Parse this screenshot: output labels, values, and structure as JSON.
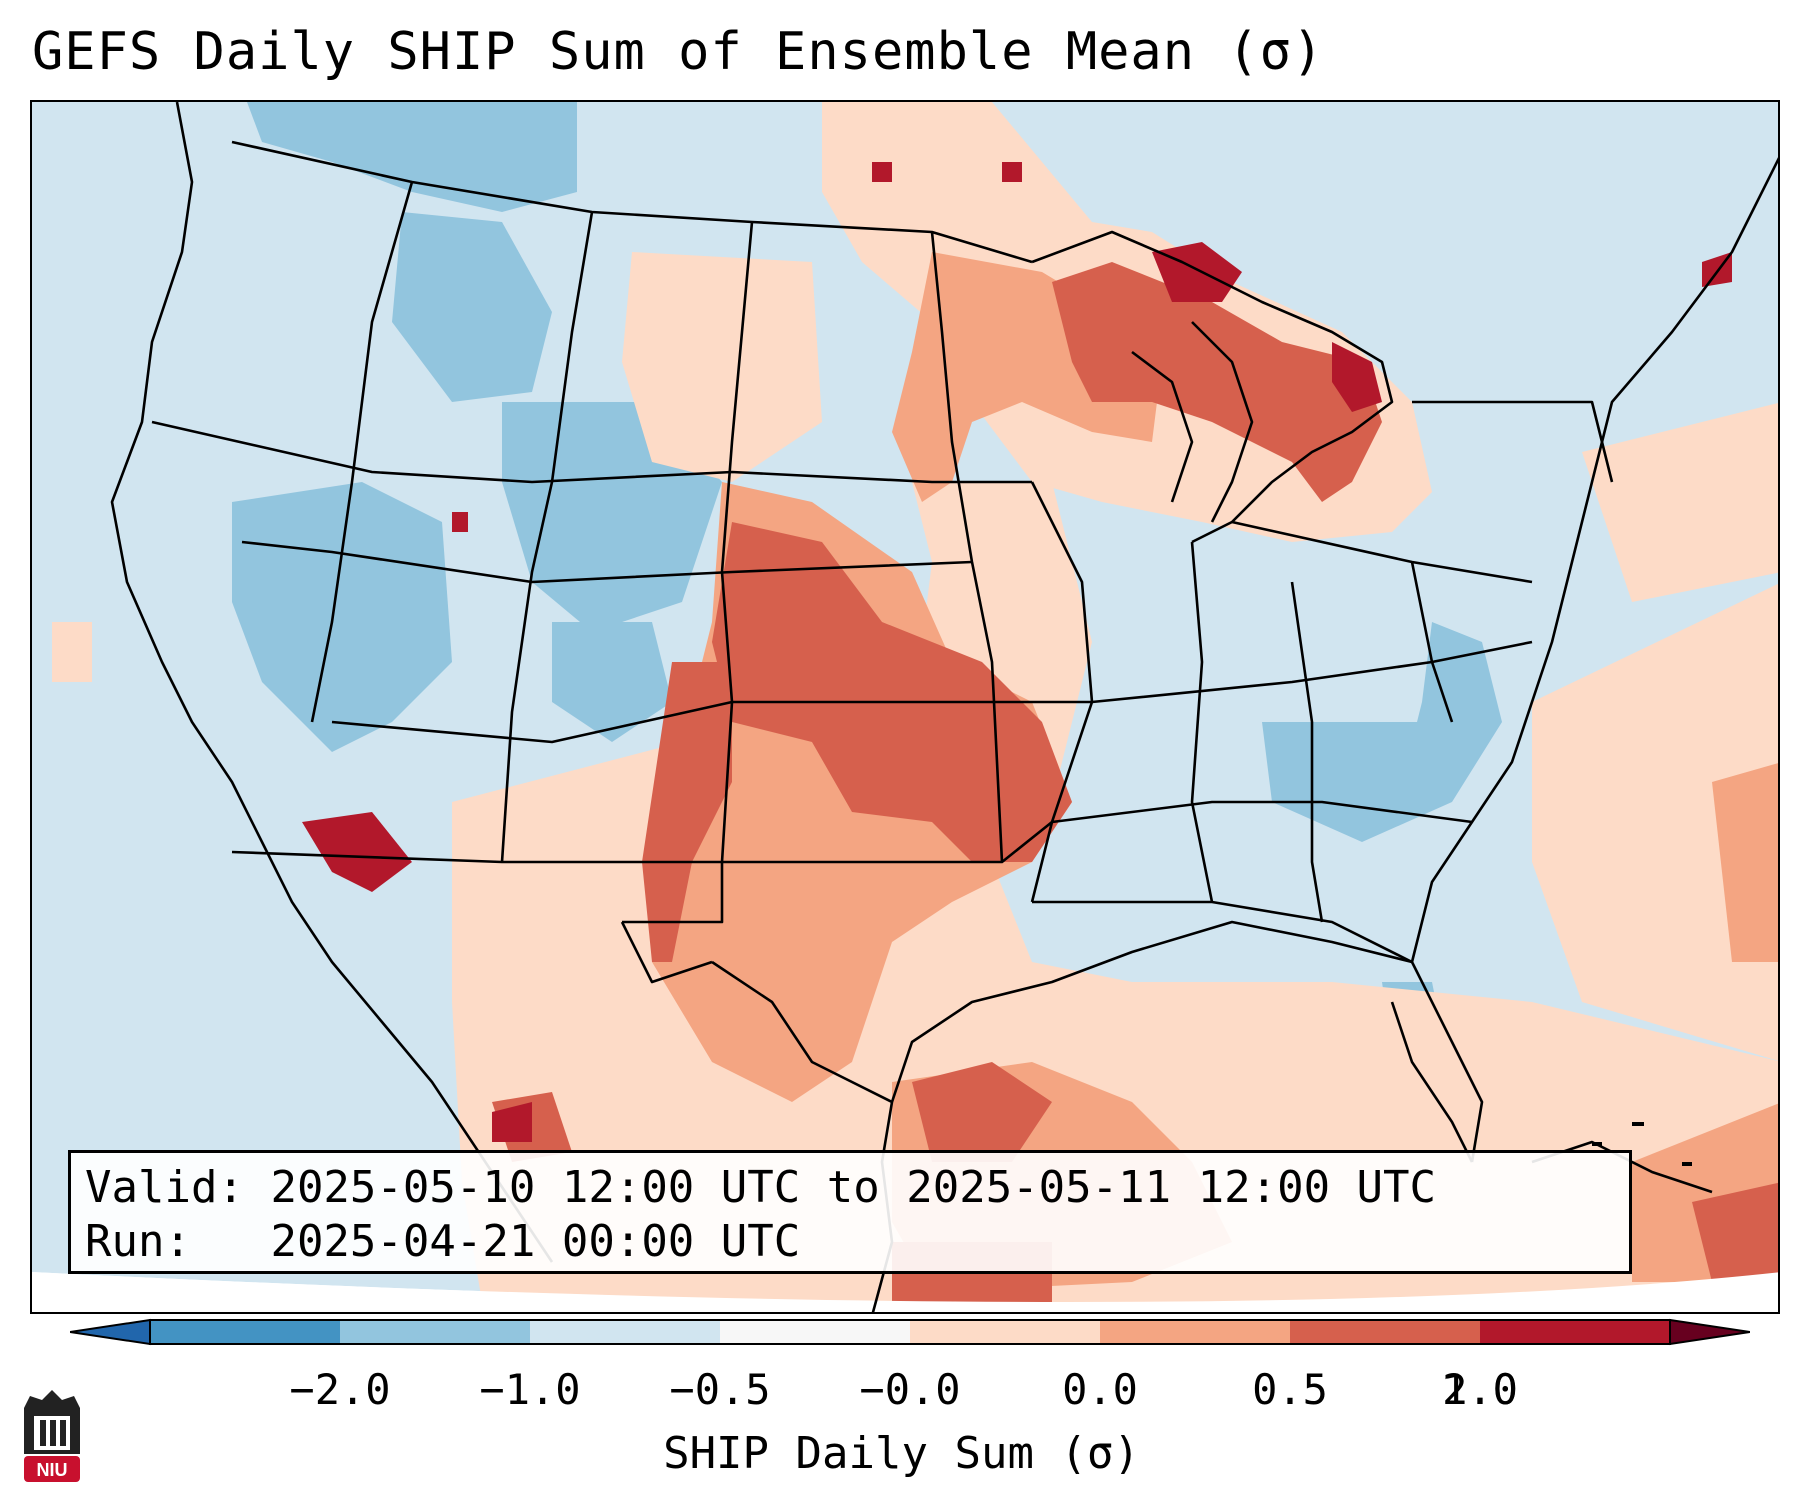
{
  "title": "GEFS Daily SHIP Sum of Ensemble Mean (σ)",
  "info": {
    "valid_label": "Valid:",
    "valid_value": "2025-05-10 12:00 UTC to 2025-05-11 12:00 UTC",
    "run_label": "Run:",
    "run_value": "2025-04-21 00:00 UTC"
  },
  "colorbar": {
    "label": "SHIP Daily Sum (σ)",
    "ticks": [
      "−2.0",
      "−1.0",
      "−0.5",
      "−0.0",
      "0.0",
      "0.5",
      "1.0",
      "2.0"
    ],
    "colors": [
      "#4393c3",
      "#92c5de",
      "#d1e5f0",
      "#f7f7f7",
      "#fddbc7",
      "#f4a582",
      "#d6604d",
      "#b2182b"
    ]
  },
  "logo": {
    "text": "NIU",
    "color": "#c8102e"
  }
}
